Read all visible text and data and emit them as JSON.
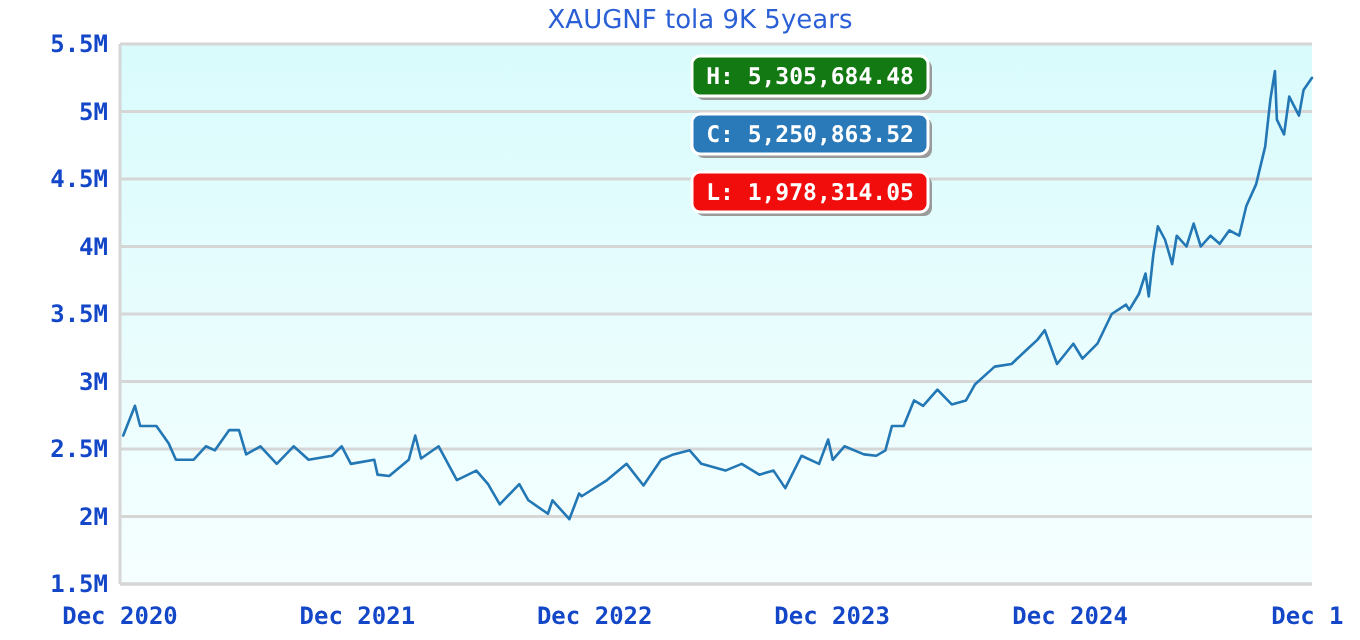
{
  "chart_data": {
    "type": "line",
    "title": "XAUGNF tola 9K 5years",
    "x": [
      "2020-12-06",
      "2020-12-24",
      "2021-01-01",
      "2021-01-26",
      "2021-02-14",
      "2021-02-25",
      "2021-03-24",
      "2021-04-12",
      "2021-04-26",
      "2021-05-18",
      "2021-06-02",
      "2021-06-13",
      "2021-07-05",
      "2021-07-30",
      "2021-08-25",
      "2021-09-17",
      "2021-10-23",
      "2021-11-07",
      "2021-11-21",
      "2021-12-27",
      "2022-01-01",
      "2022-01-19",
      "2022-02-18",
      "2022-02-28",
      "2022-03-09",
      "2022-04-05",
      "2022-05-03",
      "2022-06-02",
      "2022-06-20",
      "2022-07-08",
      "2022-08-07",
      "2022-08-21",
      "2022-09-20",
      "2022-09-27",
      "2022-10-23",
      "2022-11-07",
      "2022-11-11",
      "2022-12-20",
      "2023-01-19",
      "2023-02-14",
      "2023-03-13",
      "2023-04-01",
      "2023-04-26",
      "2023-05-14",
      "2023-06-20",
      "2023-07-15",
      "2023-08-11",
      "2023-09-02",
      "2023-09-20",
      "2023-10-15",
      "2023-11-11",
      "2023-11-25",
      "2023-12-02",
      "2023-12-20",
      "2024-01-19",
      "2024-02-07",
      "2024-02-21",
      "2024-03-02",
      "2024-03-20",
      "2024-04-05",
      "2024-04-19",
      "2024-05-11",
      "2024-06-02",
      "2024-06-24",
      "2024-07-08",
      "2024-08-07",
      "2024-09-02",
      "2024-09-24",
      "2024-10-12",
      "2024-10-23",
      "2024-11-11",
      "2024-12-06",
      "2024-12-20",
      "2025-01-12",
      "2025-02-03",
      "2025-02-25",
      "2025-03-02",
      "2025-03-17",
      "2025-03-27",
      "2025-04-01",
      "2025-04-08",
      "2025-04-15",
      "2025-04-26",
      "2025-05-07",
      "2025-05-14",
      "2025-05-29",
      "2025-06-09",
      "2025-06-20",
      "2025-07-05",
      "2025-07-19",
      "2025-08-03",
      "2025-08-18",
      "2025-08-29",
      "2025-09-13",
      "2025-09-27",
      "2025-10-05",
      "2025-10-12",
      "2025-10-15",
      "2025-10-26",
      "2025-11-03",
      "2025-11-18",
      "2025-11-25",
      "2025-12-08"
    ],
    "series": [
      {
        "color": "#2377b4",
        "values": [
          2600000,
          2820000,
          2670000,
          2670000,
          2540000,
          2420000,
          2420000,
          2520000,
          2490000,
          2640000,
          2640000,
          2460000,
          2520000,
          2390000,
          2520000,
          2420000,
          2450000,
          2520000,
          2390000,
          2420000,
          2310000,
          2300000,
          2420000,
          2600000,
          2430000,
          2520000,
          2270000,
          2340000,
          2240000,
          2090000,
          2240000,
          2120000,
          2020000,
          2120000,
          1980000,
          2170000,
          2150000,
          2270000,
          2390000,
          2230000,
          2420000,
          2460000,
          2490000,
          2390000,
          2340000,
          2390000,
          2310000,
          2340000,
          2210000,
          2450000,
          2390000,
          2570000,
          2420000,
          2520000,
          2460000,
          2450000,
          2490000,
          2670000,
          2670000,
          2860000,
          2820000,
          2940000,
          2830000,
          2860000,
          2980000,
          3110000,
          3130000,
          3230000,
          3310000,
          3380000,
          3130000,
          3280000,
          3170000,
          3280000,
          3500000,
          3570000,
          3530000,
          3650000,
          3800000,
          3630000,
          3940000,
          4150000,
          4050000,
          3870000,
          4080000,
          4000000,
          4170000,
          4000000,
          4080000,
          4020000,
          4120000,
          4080000,
          4300000,
          4460000,
          4740000,
          5090000,
          5300000,
          4940000,
          4830000,
          5110000,
          4970000,
          5160000,
          5250000
        ]
      }
    ],
    "xlim": [
      "2020-12-01",
      "2025-12-08"
    ],
    "xticks": [
      {
        "value": "2020-12-01",
        "label": "Dec 2020"
      },
      {
        "value": "2021-12-01",
        "label": "Dec 2021"
      },
      {
        "value": "2022-12-01",
        "label": "Dec 2022"
      },
      {
        "value": "2023-12-01",
        "label": "Dec 2023"
      },
      {
        "value": "2024-12-01",
        "label": "Dec 2024"
      },
      {
        "value": "2025-12-01",
        "label": "Dec 1"
      }
    ],
    "ylim": [
      1500000,
      5500000
    ],
    "yticks": [
      {
        "value": 1500000,
        "label": "1.5M"
      },
      {
        "value": 2000000,
        "label": "2M"
      },
      {
        "value": 2500000,
        "label": "2.5M"
      },
      {
        "value": 3000000,
        "label": "3M"
      },
      {
        "value": 3500000,
        "label": "3.5M"
      },
      {
        "value": 4000000,
        "label": "4M"
      },
      {
        "value": 4500000,
        "label": "4.5M"
      },
      {
        "value": 5000000,
        "label": "5M"
      },
      {
        "value": 5500000,
        "label": "5.5M"
      }
    ],
    "grid": "y",
    "annotations": [
      "H: 5,305,684.48",
      "C: 5,250,863.52",
      "L: 1,978,314.05"
    ]
  }
}
